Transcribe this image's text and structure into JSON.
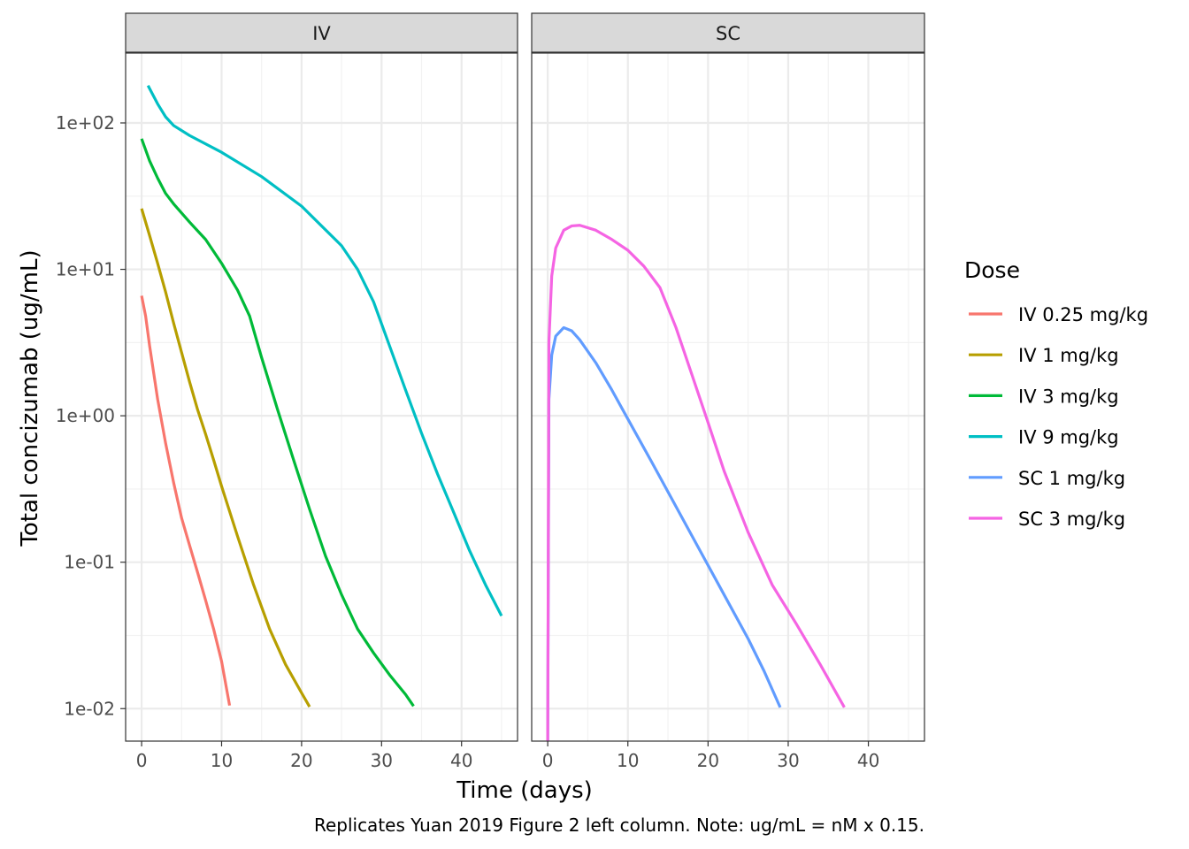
{
  "chart_data": {
    "type": "line",
    "facets": [
      "IV",
      "SC"
    ],
    "xlabel": "Time (days)",
    "ylabel": "Total concizumab (ug/mL)",
    "caption": "Replicates Yuan 2019 Figure 2 left column. Note: ug/mL = nM x 0.15.",
    "x_ticks": [
      0,
      10,
      20,
      30,
      40
    ],
    "x_tick_labels": [
      "0",
      "10",
      "20",
      "30",
      "40"
    ],
    "xlim": [
      -2,
      47
    ],
    "y_scale": "log10",
    "y_ticks": [
      0.01,
      0.1,
      1,
      10,
      100
    ],
    "y_tick_labels": [
      "1e-02",
      "1e-01",
      "1e+00",
      "1e+01",
      "1e+02"
    ],
    "ylim": [
      0.006,
      300
    ],
    "grid": true,
    "legend_title": "Dose",
    "legend_position": "right",
    "series": [
      {
        "name": "IV 0.25 mg/kg",
        "facet": "IV",
        "color": "#F8766D",
        "points": [
          [
            0,
            6.6
          ],
          [
            0.5,
            4.8
          ],
          [
            1,
            3.0
          ],
          [
            2,
            1.3
          ],
          [
            3,
            0.65
          ],
          [
            4,
            0.35
          ],
          [
            5,
            0.2
          ],
          [
            6,
            0.13
          ],
          [
            7,
            0.085
          ],
          [
            8,
            0.055
          ],
          [
            9,
            0.035
          ],
          [
            10,
            0.021
          ],
          [
            11,
            0.0105
          ]
        ]
      },
      {
        "name": "IV 1 mg/kg",
        "facet": "IV",
        "color": "#B79F00",
        "points": [
          [
            0,
            26
          ],
          [
            1,
            17
          ],
          [
            2,
            11
          ],
          [
            3,
            7
          ],
          [
            4,
            4.3
          ],
          [
            5,
            2.7
          ],
          [
            6,
            1.7
          ],
          [
            7,
            1.1
          ],
          [
            8,
            0.75
          ],
          [
            9,
            0.5
          ],
          [
            10,
            0.33
          ],
          [
            12,
            0.15
          ],
          [
            14,
            0.07
          ],
          [
            16,
            0.035
          ],
          [
            18,
            0.02
          ],
          [
            20,
            0.0128
          ],
          [
            21,
            0.0103
          ]
        ]
      },
      {
        "name": "IV 3 mg/kg",
        "facet": "IV",
        "color": "#00BA38",
        "points": [
          [
            0,
            78
          ],
          [
            1,
            55
          ],
          [
            2,
            42
          ],
          [
            3,
            33
          ],
          [
            4,
            28
          ],
          [
            6,
            21
          ],
          [
            8,
            16
          ],
          [
            10,
            11
          ],
          [
            12,
            7.2
          ],
          [
            13.5,
            4.8
          ],
          [
            15,
            2.5
          ],
          [
            17,
            1.1
          ],
          [
            19,
            0.5
          ],
          [
            21,
            0.23
          ],
          [
            23,
            0.11
          ],
          [
            25,
            0.06
          ],
          [
            27,
            0.035
          ],
          [
            29,
            0.024
          ],
          [
            31,
            0.017
          ],
          [
            33,
            0.0125
          ],
          [
            34,
            0.0104
          ]
        ]
      },
      {
        "name": "IV 9 mg/kg",
        "facet": "IV",
        "color": "#00BFC4",
        "points": [
          [
            0.8,
            180
          ],
          [
            2,
            135
          ],
          [
            3,
            110
          ],
          [
            4,
            96
          ],
          [
            6,
            82
          ],
          [
            10,
            63
          ],
          [
            15,
            43
          ],
          [
            20,
            27
          ],
          [
            25,
            14.5
          ],
          [
            27,
            10
          ],
          [
            29,
            6
          ],
          [
            31,
            3
          ],
          [
            33,
            1.5
          ],
          [
            35,
            0.76
          ],
          [
            37,
            0.4
          ],
          [
            39,
            0.22
          ],
          [
            41,
            0.12
          ],
          [
            43,
            0.07
          ],
          [
            45,
            0.043
          ]
        ]
      },
      {
        "name": "SC 1 mg/kg",
        "facet": "SC",
        "color": "#619CFF",
        "points": [
          [
            0,
            0.006
          ],
          [
            0.15,
            1.3
          ],
          [
            0.5,
            2.6
          ],
          [
            1,
            3.5
          ],
          [
            2,
            4.0
          ],
          [
            3,
            3.8
          ],
          [
            4,
            3.3
          ],
          [
            6,
            2.3
          ],
          [
            8,
            1.5
          ],
          [
            10,
            0.95
          ],
          [
            13,
            0.48
          ],
          [
            16,
            0.24
          ],
          [
            19,
            0.12
          ],
          [
            22,
            0.06
          ],
          [
            25,
            0.03
          ],
          [
            27,
            0.018
          ],
          [
            29,
            0.0102
          ]
        ]
      },
      {
        "name": "SC 3 mg/kg",
        "facet": "SC",
        "color": "#F564E3",
        "points": [
          [
            0,
            0.006
          ],
          [
            0.15,
            3.2
          ],
          [
            0.5,
            9
          ],
          [
            1,
            14
          ],
          [
            2,
            18.5
          ],
          [
            3,
            19.8
          ],
          [
            4,
            20
          ],
          [
            6,
            18.5
          ],
          [
            8,
            16
          ],
          [
            10,
            13.5
          ],
          [
            12,
            10.5
          ],
          [
            14,
            7.5
          ],
          [
            16,
            4
          ],
          [
            18,
            1.9
          ],
          [
            20,
            0.9
          ],
          [
            22,
            0.42
          ],
          [
            25,
            0.16
          ],
          [
            28,
            0.07
          ],
          [
            31,
            0.038
          ],
          [
            34,
            0.02
          ],
          [
            37,
            0.0102
          ]
        ]
      }
    ]
  }
}
